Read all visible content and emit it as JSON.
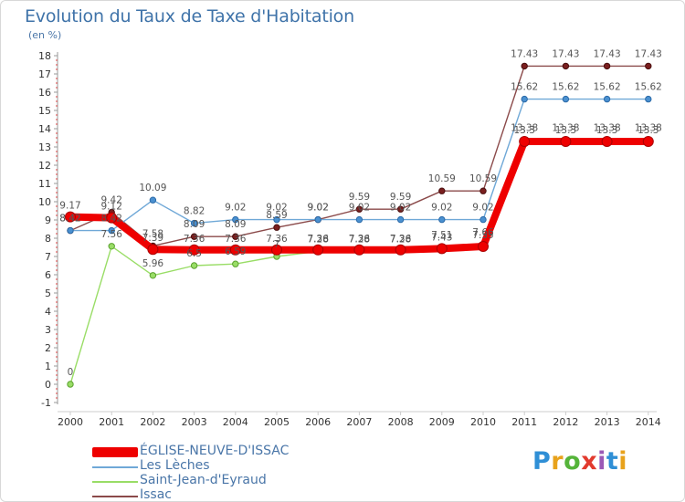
{
  "header": {
    "title": "Evolution du Taux de Taxe d'Habitation",
    "unit": "(en %)"
  },
  "chart_data": {
    "type": "line",
    "title": "Evolution du Taux de Taxe d'Habitation",
    "ylabel": "(en %)",
    "xlabel": "",
    "ylim": [
      -1,
      18
    ],
    "grid": false,
    "x": [
      "2000",
      "2001",
      "2002",
      "2003",
      "2004",
      "2005",
      "2006",
      "2007",
      "2008",
      "2009",
      "2010",
      "2011",
      "2012",
      "2013",
      "2014"
    ],
    "yticks": [
      "-1",
      "0",
      "1",
      "2",
      "3",
      "4",
      "5",
      "6",
      "7",
      "8",
      "9",
      "10",
      "11",
      "12",
      "13",
      "14",
      "15",
      "16",
      "17",
      "18"
    ],
    "series": [
      {
        "name": "ÉGLISE-NEUVE-D'ISSAC",
        "color": "#ee0000",
        "values": [
          9.17,
          9.12,
          7.39,
          7.36,
          7.36,
          7.36,
          7.36,
          7.36,
          7.36,
          7.43,
          7.55,
          13.3,
          13.3,
          13.3,
          13.3
        ],
        "labels": [
          "9.17",
          "9.12",
          "7.39",
          "7.36",
          "7.36",
          "7.36",
          "7.36",
          "7.36",
          "7.36",
          "7.43",
          "7.55",
          "13.3",
          "13.3",
          "13.3",
          "13.3"
        ]
      },
      {
        "name": "Les Lèches",
        "color": "#6fa8d7",
        "values": [
          8.42,
          8.42,
          10.09,
          8.82,
          9.02,
          9.02,
          9.02,
          9.02,
          9.02,
          9.02,
          9.02,
          15.62,
          15.62,
          15.62,
          15.62
        ],
        "labels": [
          "8.42",
          "8.42",
          "10.09",
          "8.82",
          "9.02",
          "9.02",
          "9.02",
          "9.02",
          "9.02",
          "9.02",
          "9.02",
          "15.62",
          "15.62",
          "15.62",
          "15.62"
        ]
      },
      {
        "name": "Saint-Jean-d'Eyraud",
        "color": "#99dd66",
        "values": [
          0,
          7.56,
          5.96,
          6.5,
          6.59,
          7.0,
          7.28,
          7.28,
          7.28,
          7.51,
          7.66,
          13.38,
          13.38,
          13.38,
          13.38
        ],
        "labels": [
          "0",
          "7.56",
          "5.96",
          "6.5",
          "6.59",
          "7",
          "7.28",
          "7.28",
          "7.28",
          "7.51",
          "7.66",
          "13.38",
          "13.38",
          "13.38",
          "13.38"
        ]
      },
      {
        "name": "Issac",
        "color": "#8b4a4a",
        "values": [
          8.42,
          9.42,
          7.58,
          8.09,
          8.09,
          8.59,
          9.02,
          9.59,
          9.59,
          10.59,
          10.59,
          17.43,
          17.43,
          17.43,
          17.43
        ],
        "labels": [
          "8.42",
          "9.42",
          "7.58",
          "8.09",
          "8.09",
          "8.59",
          "9.02",
          "9.59",
          "9.59",
          "10.59",
          "10.59",
          "17.43",
          "17.43",
          "17.43",
          "17.43"
        ]
      }
    ],
    "legend": {
      "placement": "bottom-left"
    }
  },
  "legend": {
    "items": [
      {
        "label": "ÉGLISE-NEUVE-D'ISSAC",
        "color": "#ee0000"
      },
      {
        "label": "Les Lèches",
        "color": "#6fa8d7"
      },
      {
        "label": "Saint-Jean-d'Eyraud",
        "color": "#99dd66"
      },
      {
        "label": "Issac",
        "color": "#8b4a4a"
      }
    ]
  },
  "logo": {
    "letters": [
      "P",
      "r",
      "o",
      "x",
      "i",
      "t",
      "i"
    ],
    "colors": [
      "#2f8fd6",
      "#e8a21c",
      "#55b43a",
      "#e23a2e",
      "#9b59b6",
      "#2f8fd6",
      "#e8a21c"
    ]
  }
}
